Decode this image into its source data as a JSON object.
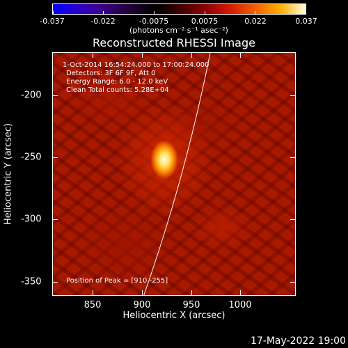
{
  "colorbar": {
    "labels": [
      "-0.037",
      "-0.022",
      "-0.0075",
      "0.0075",
      "0.022",
      "0.037"
    ],
    "units": "(photons cm⁻² s⁻¹ asec⁻²)"
  },
  "title": "Reconstructed RHESSI Image",
  "info": {
    "line1": "1-Oct-2014 16:54:24.000 to 17:00:24.000",
    "line2": "Detectors: 3F 6F 9F, Att 0",
    "line3": "Energy Range: 6.0 - 12.0 keV",
    "line4": "Clean    Total counts: 5.28E+04"
  },
  "peak": "Position of Peak = [910,-255]",
  "xaxis": {
    "title": "Heliocentric X (arcsec)",
    "ticks": [
      "850",
      "900",
      "950",
      "1000"
    ]
  },
  "yaxis": {
    "title": "Heliocentric Y (arcsec)",
    "ticks": [
      "-200",
      "-250",
      "-300",
      "-350"
    ]
  },
  "timestamp": "17-May-2022 19:00"
}
